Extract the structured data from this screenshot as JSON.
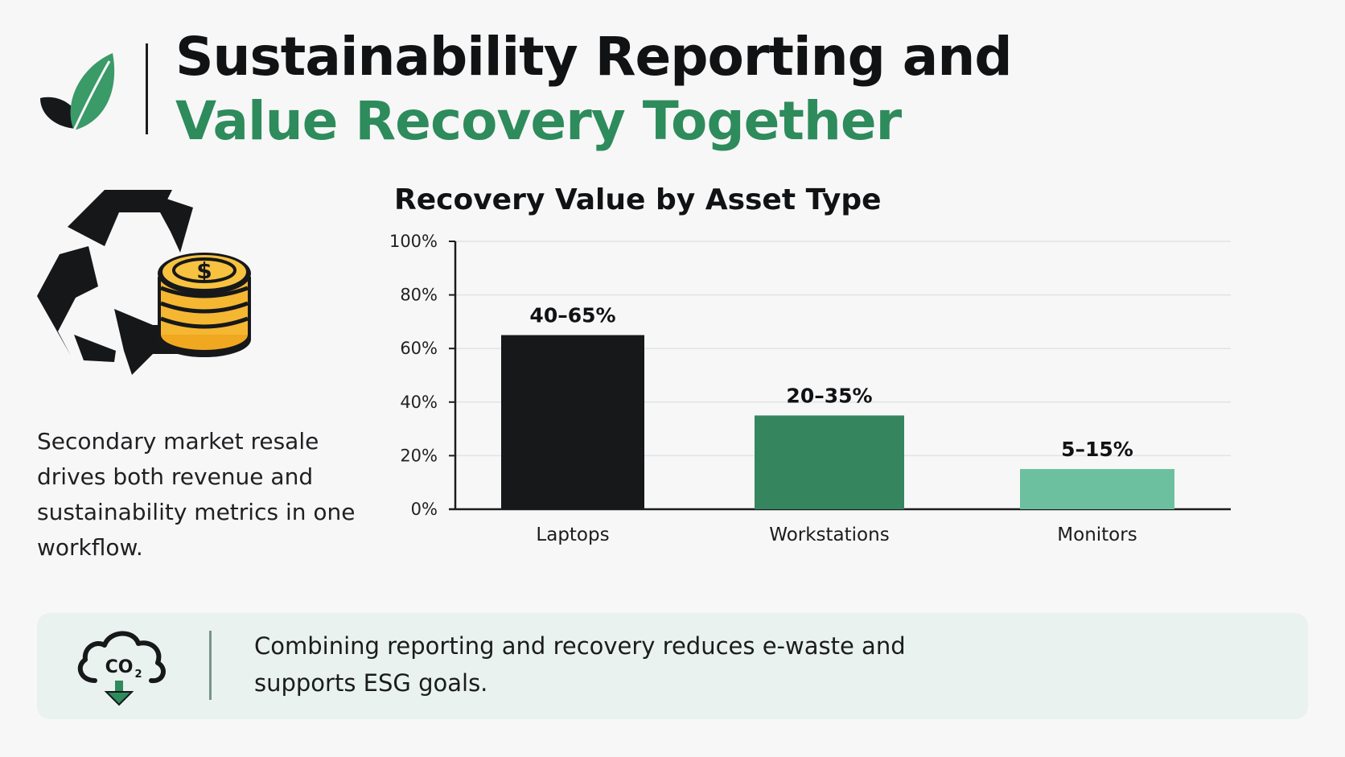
{
  "header": {
    "title_line1": "Sustainability Reporting and",
    "title_line2": "Value Recovery Together"
  },
  "left_panel": {
    "icon": "recycle-coins-icon",
    "description": "Secondary market resale drives both revenue and sustainability metrics in one workflow."
  },
  "chart_data": {
    "type": "bar",
    "title": "Recovery Value by Asset Type",
    "categories": [
      "Laptops",
      "Workstations",
      "Monitors"
    ],
    "ranges": [
      [
        40,
        65
      ],
      [
        20,
        35
      ],
      [
        5,
        15
      ]
    ],
    "values": [
      65,
      35,
      15
    ],
    "data_labels": [
      "40–65%",
      "20–35%",
      "5–15%"
    ],
    "bar_colors": [
      "#161819",
      "#35865f",
      "#6cc0a0"
    ],
    "ylim": [
      0,
      100
    ],
    "yticks": [
      0,
      20,
      40,
      60,
      80,
      100
    ],
    "ytick_labels": [
      "0%",
      "20%",
      "40%",
      "60%",
      "80%",
      "100%"
    ],
    "xlabel": "",
    "ylabel": "",
    "grid": true,
    "legend": "none"
  },
  "callout": {
    "icon": "co2-cloud-down-icon",
    "text": "Combining reporting and recovery reduces e-waste and supports ESG goals."
  },
  "colors": {
    "accent_green": "#2e8b5b",
    "dark": "#111214",
    "callout_bg": "#e9f2ef",
    "coin_gold": "#f5b731"
  }
}
